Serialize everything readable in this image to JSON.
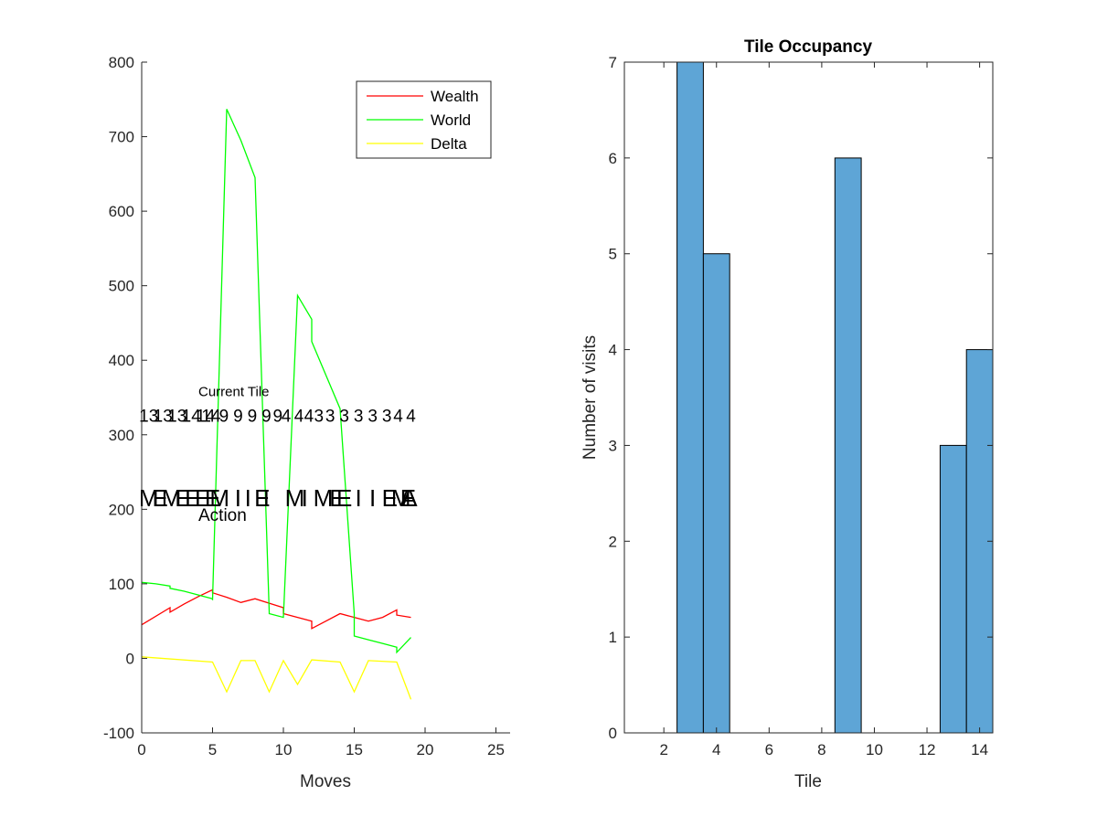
{
  "chart_data": [
    {
      "type": "line",
      "title": "",
      "xlabel": "Moves",
      "ylabel": "",
      "xlim": [
        0,
        26
      ],
      "ylim": [
        -100,
        800
      ],
      "xticks": [
        0,
        5,
        10,
        15,
        20,
        25
      ],
      "yticks": [
        -100,
        0,
        100,
        200,
        300,
        400,
        500,
        600,
        700,
        800
      ],
      "legend": {
        "position": "top-right",
        "entries": [
          "Wealth",
          "World",
          "Delta"
        ]
      },
      "series": [
        {
          "name": "Wealth",
          "color": "#ff0000",
          "x": [
            0,
            2,
            2,
            3,
            4,
            5,
            5,
            6,
            7,
            8,
            9,
            10,
            10,
            11,
            12,
            12,
            13,
            14,
            15,
            16,
            17,
            18,
            18,
            19
          ],
          "y": [
            45,
            68,
            62,
            73,
            83,
            92,
            88,
            82,
            75,
            80,
            74,
            68,
            60,
            55,
            50,
            40,
            50,
            60,
            55,
            50,
            55,
            65,
            58,
            55
          ]
        },
        {
          "name": "World",
          "color": "#00ff00",
          "x": [
            0,
            1,
            2,
            2,
            3,
            4,
            5,
            5,
            6,
            7,
            8,
            9,
            9,
            10,
            11,
            12,
            12,
            13,
            14,
            15,
            15,
            16,
            17,
            18,
            18,
            19
          ],
          "y": [
            102,
            100,
            97,
            94,
            90,
            85,
            80,
            78,
            737,
            695,
            645,
            62,
            60,
            55,
            487,
            455,
            425,
            380,
            335,
            60,
            30,
            25,
            20,
            15,
            8,
            28
          ],
          "y_note": "see original plot"
        },
        {
          "name": "Delta",
          "color": "#ffff00",
          "x": [
            0,
            5,
            6,
            7,
            8,
            9,
            10,
            11,
            12,
            14,
            15,
            16,
            18,
            19
          ],
          "y": [
            2,
            -5,
            -45,
            -3,
            -3,
            -45,
            -3,
            -35,
            -2,
            -5,
            -45,
            -3,
            -5,
            -55
          ]
        }
      ],
      "annotations": {
        "current_tile_label": "Current Tile",
        "current_tile_y": 325,
        "current_tile_values": [
          {
            "x": 0.5,
            "text": "13"
          },
          {
            "x": 1.5,
            "text": "13"
          },
          {
            "x": 2.5,
            "text": "13"
          },
          {
            "x": 3.5,
            "text": "14"
          },
          {
            "x": 4.5,
            "text": "14"
          },
          {
            "x": 4.9,
            "text": "14"
          },
          {
            "x": 5.8,
            "text": "9"
          },
          {
            "x": 6.8,
            "text": "9"
          },
          {
            "x": 7.8,
            "text": "9"
          },
          {
            "x": 8.8,
            "text": "9"
          },
          {
            "x": 9.6,
            "text": "9"
          },
          {
            "x": 10.2,
            "text": "4"
          },
          {
            "x": 11.1,
            "text": "4"
          },
          {
            "x": 11.8,
            "text": "4"
          },
          {
            "x": 12.5,
            "text": "3"
          },
          {
            "x": 13.3,
            "text": "3"
          },
          {
            "x": 14.3,
            "text": "3"
          },
          {
            "x": 15.3,
            "text": "3"
          },
          {
            "x": 16.3,
            "text": "3"
          },
          {
            "x": 17.3,
            "text": "3"
          },
          {
            "x": 18.1,
            "text": "4"
          },
          {
            "x": 19.0,
            "text": "4"
          }
        ],
        "action_label": "Action",
        "action_y": 215,
        "action_values": [
          {
            "x": 0.5,
            "text": "M"
          },
          {
            "x": 1.3,
            "text": "E"
          },
          {
            "x": 2.1,
            "text": "M"
          },
          {
            "x": 2.9,
            "text": "E"
          },
          {
            "x": 3.6,
            "text": "E"
          },
          {
            "x": 4.3,
            "text": "E"
          },
          {
            "x": 5.0,
            "text": "E"
          },
          {
            "x": 5.5,
            "text": "M"
          },
          {
            "x": 6.8,
            "text": "I"
          },
          {
            "x": 7.5,
            "text": "I"
          },
          {
            "x": 8.5,
            "text": "E"
          },
          {
            "x": 8.8,
            "text": "I"
          },
          {
            "x": 10.8,
            "text": "M"
          },
          {
            "x": 11.5,
            "text": "I"
          },
          {
            "x": 12.8,
            "text": "M"
          },
          {
            "x": 13.8,
            "text": "E"
          },
          {
            "x": 14.3,
            "text": "E"
          },
          {
            "x": 15.3,
            "text": "I"
          },
          {
            "x": 16.3,
            "text": "I"
          },
          {
            "x": 17.5,
            "text": "E"
          },
          {
            "x": 18.3,
            "text": "M"
          },
          {
            "x": 18.8,
            "text": "E"
          },
          {
            "x": 18.9,
            "text": "A"
          }
        ]
      }
    },
    {
      "type": "bar",
      "title": "Tile Occupancy",
      "xlabel": "Tile",
      "ylabel": "Number of visits",
      "xlim": [
        0.5,
        14.5
      ],
      "ylim": [
        0,
        7
      ],
      "xticks": [
        2,
        4,
        6,
        8,
        10,
        12,
        14
      ],
      "yticks": [
        0,
        1,
        2,
        3,
        4,
        5,
        6,
        7
      ],
      "bar_color": "#5ea5d6",
      "categories": [
        1,
        2,
        3,
        4,
        5,
        6,
        7,
        8,
        9,
        10,
        11,
        12,
        13,
        14
      ],
      "values": [
        0,
        0,
        7,
        5,
        0,
        0,
        0,
        0,
        6,
        0,
        0,
        0,
        3,
        4
      ]
    }
  ]
}
